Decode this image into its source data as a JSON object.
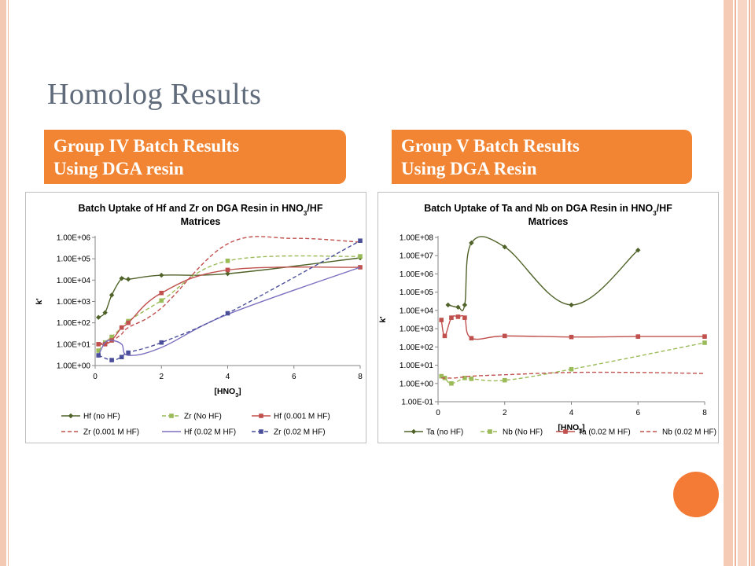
{
  "slide": {
    "title": "Homolog Results",
    "banner_left": [
      "Group IV Batch Results",
      "Using DGA resin"
    ],
    "banner_right": [
      "Group V Batch Results",
      "Using DGA Resin"
    ]
  },
  "colors": {
    "accent_orange": "#f28533",
    "dark_green": "#4f6228",
    "light_green": "#9bbb59",
    "red": "#c0504d",
    "purple": "#7b6fbf",
    "dark_blue": "#4b4f9a"
  },
  "chart_data": [
    {
      "type": "line",
      "title": [
        "Batch Uptake of Hf and Zr on DGA Resin in HNO",
        "3",
        "/HF",
        "Matrices"
      ],
      "title_text": "Batch Uptake of Hf and Zr on DGA Resin in HNO3/HF Matrices",
      "xlabel": "[HNO3]",
      "ylabel": "k'",
      "y_scale": "log",
      "xlim": [
        0,
        8
      ],
      "ylim": [
        1,
        1000000
      ],
      "xticks": [
        "0",
        "2",
        "4",
        "6",
        "8"
      ],
      "yticks": [
        "1.00E+00",
        "1.00E+01",
        "1.00E+02",
        "1.00E+03",
        "1.00E+04",
        "1.00E+05",
        "1.00E+06"
      ],
      "grid": false,
      "legend_position": "bottom",
      "series": [
        {
          "name": "Hf (no HF)",
          "color": "#4f6228",
          "dash": "solid",
          "marker": "diamond",
          "markers": true,
          "x": [
            0.1,
            0.3,
            0.5,
            0.8,
            1,
            2,
            4,
            8
          ],
          "y": [
            180,
            300,
            2000,
            12000,
            11000,
            17000,
            20000,
            110000
          ]
        },
        {
          "name": "Zr (No HF)",
          "color": "#9bbb59",
          "dash": "dashed",
          "marker": "square",
          "markers": true,
          "x": [
            0.1,
            0.3,
            0.5,
            0.8,
            1,
            2,
            4,
            8
          ],
          "y": [
            5,
            12,
            22,
            60,
            120,
            1100,
            80000,
            130000
          ]
        },
        {
          "name": "Hf (0.001 M HF)",
          "color": "#c0504d",
          "dash": "solid",
          "marker": "square",
          "markers": true,
          "x": [
            0.1,
            0.3,
            0.5,
            0.8,
            1,
            2,
            4,
            8
          ],
          "y": [
            10,
            10,
            15,
            60,
            100,
            2500,
            30000,
            40000
          ]
        },
        {
          "name": "Zr (0.001 M HF)",
          "color": "#c0504d",
          "dash": "dashed",
          "marker": "none",
          "markers": false,
          "x": [
            0.1,
            0.3,
            0.5,
            0.8,
            1,
            2,
            4,
            6,
            8
          ],
          "y": [
            10,
            12,
            14,
            30,
            60,
            500,
            500000,
            900000,
            600000
          ]
        },
        {
          "name": "Hf (0.02 M HF)",
          "color": "#7b6fbf",
          "dash": "solid",
          "marker": "none",
          "markers": false,
          "x": [
            0.1,
            0.3,
            0.5,
            0.8,
            1,
            2,
            4,
            8
          ],
          "y": [
            3,
            12,
            15,
            10,
            3,
            7,
            250,
            40000
          ]
        },
        {
          "name": "Zr (0.02 M HF)",
          "color": "#4b4f9a",
          "dash": "dashed",
          "marker": "square",
          "markers": true,
          "x": [
            0.1,
            0.5,
            0.8,
            1,
            2,
            4,
            8
          ],
          "y": [
            3,
            1.8,
            2.5,
            4,
            12,
            280,
            700000
          ]
        }
      ]
    },
    {
      "type": "line",
      "title": [
        "Batch Uptake of Ta and Nb on DGA Resin in HNO",
        "3",
        "/HF",
        "Matrices"
      ],
      "title_text": "Batch Uptake of Ta and Nb on DGA Resin in HNO3/HF Matrices",
      "xlabel": "[HNO3]",
      "ylabel": "k'",
      "y_scale": "log",
      "xlim": [
        0,
        8
      ],
      "ylim": [
        0.1,
        100000000
      ],
      "xticks": [
        "0",
        "2",
        "4",
        "6",
        "8"
      ],
      "yticks": [
        "1.00E-01",
        "1.00E+00",
        "1.00E+01",
        "1.00E+02",
        "1.00E+03",
        "1.00E+04",
        "1.00E+05",
        "1.00E+06",
        "1.00E+07",
        "1.00E+08"
      ],
      "grid": false,
      "legend_position": "bottom",
      "series": [
        {
          "name": "Ta (no HF)",
          "color": "#4f6228",
          "dash": "solid",
          "marker": "diamond",
          "markers": true,
          "x": [
            0.3,
            0.6,
            0.8,
            1,
            2,
            4,
            6
          ],
          "y": [
            20000,
            15000,
            20000,
            50000000,
            30000000,
            20000,
            20000000
          ]
        },
        {
          "name": "Nb (No HF)",
          "color": "#9bbb59",
          "dash": "dashed",
          "marker": "square",
          "markers": true,
          "x": [
            0.1,
            0.2,
            0.4,
            0.8,
            1,
            2,
            4,
            8
          ],
          "y": [
            2.5,
            2,
            1,
            2,
            1.8,
            1.5,
            6,
            170
          ]
        },
        {
          "name": "Ta (0.02 M HF)",
          "color": "#c0504d",
          "dash": "solid",
          "marker": "square",
          "markers": true,
          "x": [
            0.1,
            0.2,
            0.4,
            0.6,
            0.8,
            1,
            2,
            4,
            6,
            8
          ],
          "y": [
            3000,
            400,
            4000,
            4500,
            4000,
            300,
            400,
            350,
            370,
            370
          ]
        },
        {
          "name": "Nb (0.02 M HF)",
          "color": "#c0504d",
          "dash": "dashed",
          "marker": "none",
          "markers": false,
          "x": [
            0.1,
            0.5,
            1,
            2,
            4,
            6,
            8
          ],
          "y": [
            2,
            2,
            2.5,
            3,
            4,
            4,
            3.5
          ]
        }
      ]
    }
  ]
}
